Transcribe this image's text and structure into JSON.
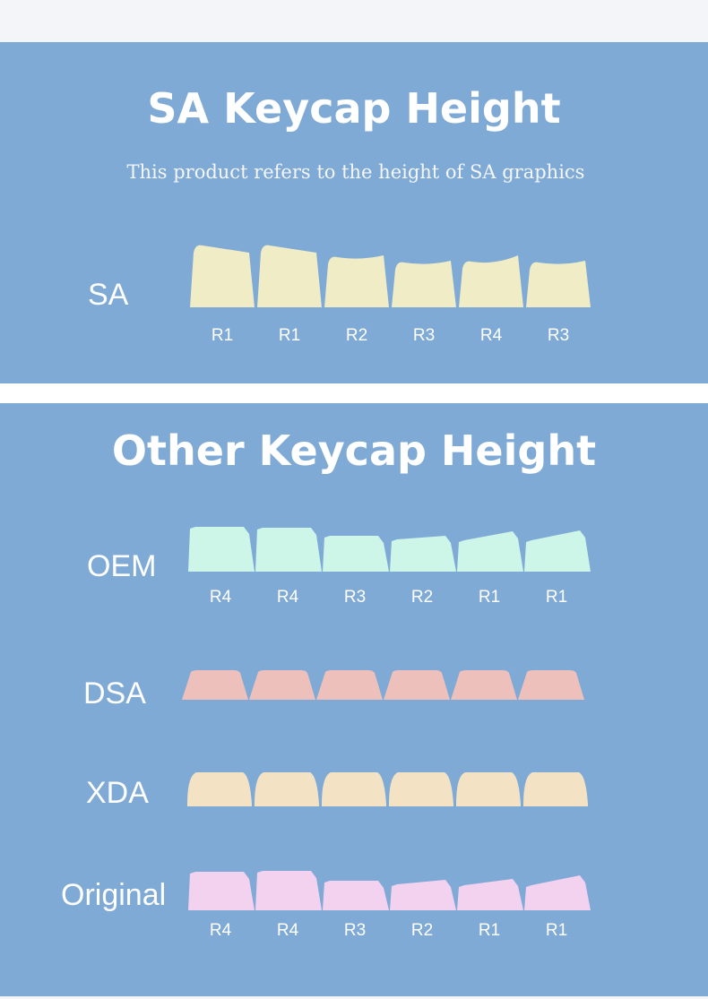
{
  "sections": [
    {
      "title": "SA Keycap Height",
      "subtitle": "This product refers to the height of SA graphics",
      "rows": [
        {
          "label": "SA",
          "keys": [
            "R1",
            "R1",
            "R2",
            "R3",
            "R4",
            "R3"
          ]
        }
      ]
    },
    {
      "title": "Other Keycap Height",
      "rows": [
        {
          "label": "OEM",
          "keys": [
            "R4",
            "R4",
            "R3",
            "R2",
            "R1",
            "R1"
          ]
        },
        {
          "label": "DSA"
        },
        {
          "label": "XDA"
        },
        {
          "label": "Original",
          "keys": [
            "R4",
            "R4",
            "R3",
            "R2",
            "R1",
            "R1"
          ]
        }
      ]
    }
  ]
}
